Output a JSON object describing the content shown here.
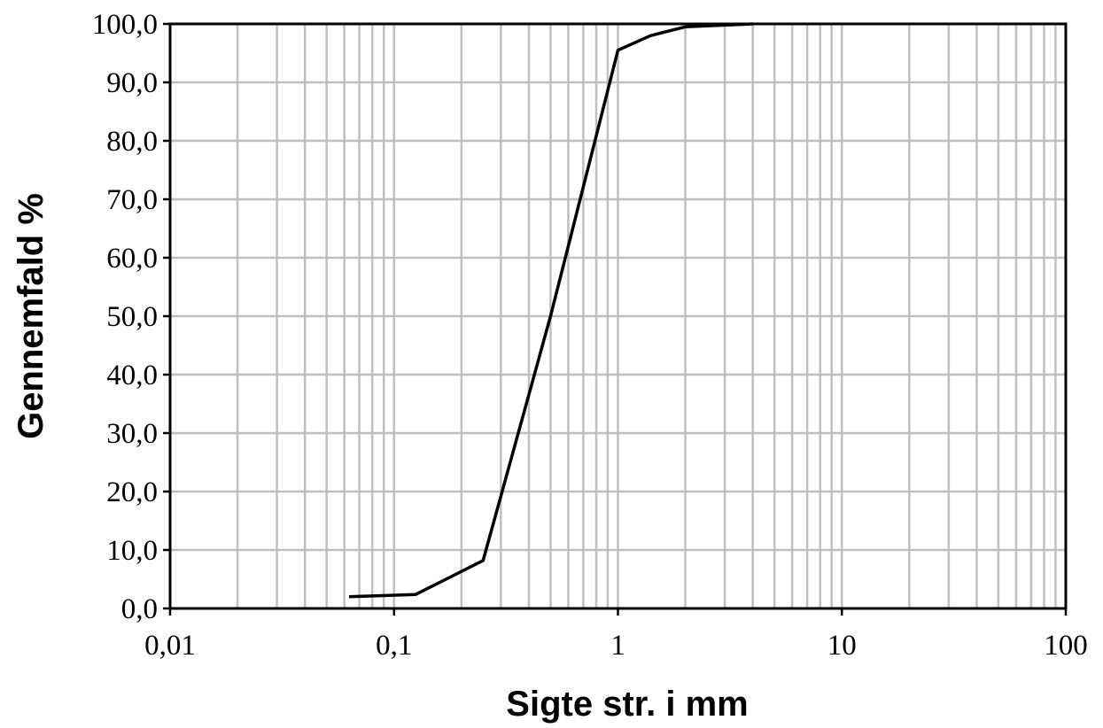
{
  "chart_data": {
    "type": "line",
    "title": "",
    "xlabel": "Sigte str. i mm",
    "ylabel": "Gennemfald %",
    "xscale": "log",
    "xlim": [
      0.01,
      100
    ],
    "ylim": [
      0,
      100
    ],
    "grid": true,
    "x_ticks": [
      {
        "value": 0.01,
        "label": "0,01"
      },
      {
        "value": 0.1,
        "label": "0,1"
      },
      {
        "value": 1,
        "label": "1"
      },
      {
        "value": 10,
        "label": "10"
      },
      {
        "value": 100,
        "label": "100"
      }
    ],
    "y_ticks": [
      {
        "value": 0,
        "label": "0,0"
      },
      {
        "value": 10,
        "label": "10,0"
      },
      {
        "value": 20,
        "label": "20,0"
      },
      {
        "value": 30,
        "label": "30,0"
      },
      {
        "value": 40,
        "label": "40,0"
      },
      {
        "value": 50,
        "label": "50,0"
      },
      {
        "value": 60,
        "label": "60,0"
      },
      {
        "value": 70,
        "label": "70,0"
      },
      {
        "value": 80,
        "label": "80,0"
      },
      {
        "value": 90,
        "label": "90,0"
      },
      {
        "value": 100,
        "label": "100,0"
      }
    ],
    "series": [
      {
        "color": "#000000",
        "x": [
          0.063,
          0.125,
          0.25,
          0.5,
          1,
          1.4,
          2,
          4
        ],
        "y": [
          2.0,
          2.4,
          8.2,
          50.0,
          95.5,
          98.0,
          99.5,
          100.0
        ]
      }
    ]
  }
}
